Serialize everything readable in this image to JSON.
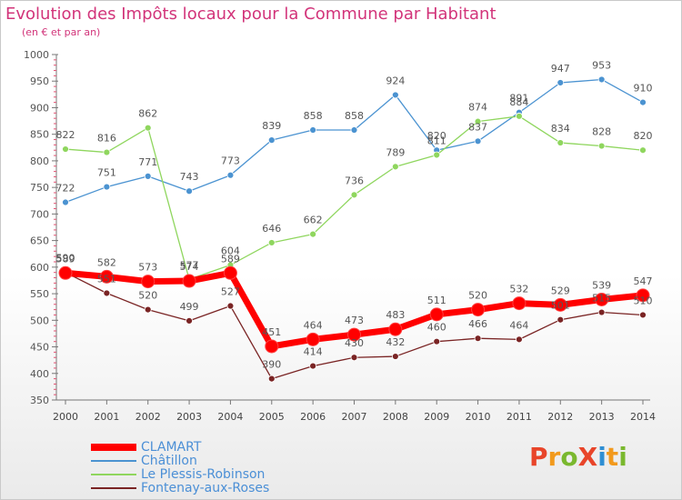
{
  "title": "Evolution des Impôts locaux pour la Commune par Habitant",
  "subtitle": "(en € et par an)",
  "logo": {
    "text": "ProXiti",
    "letters": [
      "P",
      "r",
      "o",
      "X",
      "i",
      "t",
      "i"
    ],
    "colors": [
      "#e8452a",
      "#f29a1d",
      "#7ab82e",
      "#e8452a",
      "#2f8fd3",
      "#f29a1d",
      "#7ab82e"
    ]
  },
  "chart_data": {
    "type": "line",
    "x": [
      2000,
      2001,
      2002,
      2003,
      2004,
      2005,
      2006,
      2007,
      2008,
      2009,
      2010,
      2011,
      2012,
      2013,
      2014
    ],
    "xlim": [
      2000,
      2014
    ],
    "ylim": [
      350,
      1000
    ],
    "yticks": [
      350,
      400,
      450,
      500,
      550,
      600,
      650,
      700,
      750,
      800,
      850,
      900,
      950,
      1000
    ],
    "grid": false,
    "legend_position": "bottom-left",
    "series": [
      {
        "name": "CLAMART",
        "color": "#ff0000",
        "values": [
          589,
          582,
          573,
          574,
          589,
          451,
          464,
          473,
          483,
          511,
          520,
          532,
          529,
          539,
          547
        ]
      },
      {
        "name": "Châtillon",
        "color": "#4b93d1",
        "values": [
          722,
          751,
          771,
          743,
          773,
          839,
          858,
          858,
          924,
          820,
          837,
          891,
          947,
          953,
          910
        ]
      },
      {
        "name": "Le Plessis-Robinson",
        "color": "#8fd65e",
        "values": [
          822,
          816,
          862,
          577,
          604,
          646,
          662,
          736,
          789,
          811,
          874,
          884,
          834,
          828,
          820
        ]
      },
      {
        "name": "Fontenay-aux-Roses",
        "color": "#7a2424",
        "values": [
          590,
          551,
          520,
          499,
          527,
          390,
          414,
          430,
          432,
          460,
          466,
          464,
          501,
          515,
          510
        ]
      }
    ]
  }
}
